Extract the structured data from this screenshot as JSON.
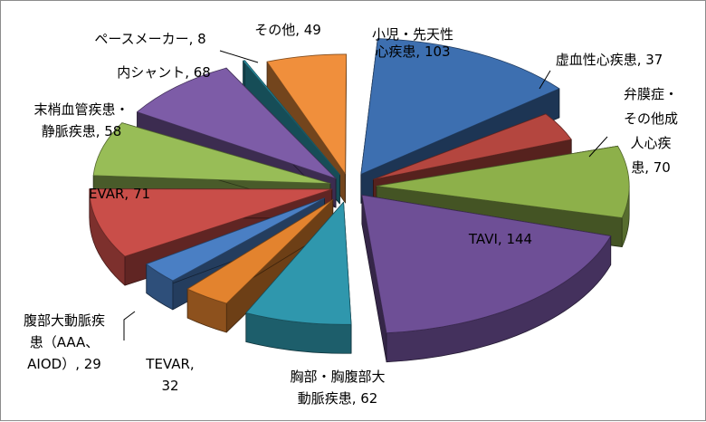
{
  "chart_data": {
    "type": "pie",
    "variant": "3d-exploded",
    "title": "",
    "legend": "none",
    "categories": [
      "小児・先天性心疾患",
      "虚血性心疾患",
      "弁膜症・その他成人心疾患",
      "TAVI",
      "胸部・胸腹部大動脈疾患",
      "TEVAR",
      "腹部大動脈疾患（AAA、AIOD）",
      "EVAR",
      "末梢血管疾患・静脈疾患",
      "内シャント",
      "ペースメーカー",
      "その他"
    ],
    "values": [
      103,
      37,
      70,
      144,
      62,
      32,
      29,
      71,
      58,
      68,
      8,
      49
    ],
    "colors": [
      "#3d6fb0",
      "#b4463f",
      "#8db04a",
      "#6e4f96",
      "#2f97ad",
      "#e3832e",
      "#4a7fc4",
      "#c94e49",
      "#98bd57",
      "#7d5ca7",
      "#2ea0b5",
      "#f08f3c"
    ],
    "labels": [
      [
        "小児・先天性",
        "心疾患, 103"
      ],
      [
        "虚血性心疾患, 37"
      ],
      [
        "弁膜症・",
        "その他成",
        "人心疾",
        "患, 70"
      ],
      [
        "TAVI, 144"
      ],
      [
        "胸部・胸腹部大",
        "動脈疾患, 62"
      ],
      [
        "TEVAR,",
        "32"
      ],
      [
        "腹部大動脈疾",
        "患（AAA、",
        "AIOD）, 29"
      ],
      [
        "EVAR, 71"
      ],
      [
        "末梢血管疾患・",
        "静脈疾患, 58"
      ],
      [
        "内シャント, 68"
      ],
      [
        "ペースメーカー, 8"
      ],
      [
        "その他, 49"
      ]
    ]
  }
}
